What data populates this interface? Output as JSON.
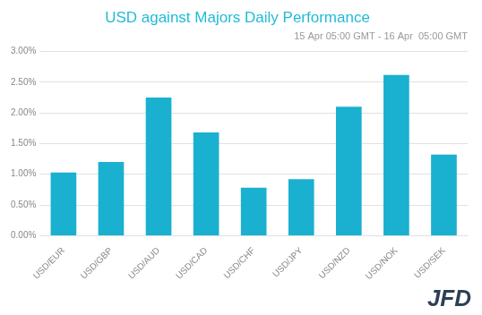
{
  "chart_data": {
    "type": "bar",
    "title": "USD against Majors Daily Performance",
    "subtitle": "15 Apr 05:00 GMT - 16 Apr  05:00 GMT",
    "categories": [
      "USD/EUR",
      "USD/GBP",
      "USD/AUD",
      "USD/CAD",
      "USD/CHF",
      "USD/JPY",
      "USD/NZD",
      "USD/NOK",
      "USD/SEK"
    ],
    "values": [
      1.03,
      1.2,
      2.25,
      1.68,
      0.78,
      0.92,
      2.1,
      2.62,
      1.32
    ],
    "color": "#1ab0d0",
    "ylim": [
      0,
      3.0
    ],
    "yticks": [
      {
        "value": 0.0,
        "label": "0.00%"
      },
      {
        "value": 0.5,
        "label": "0.50%"
      },
      {
        "value": 1.0,
        "label": "1.00%"
      },
      {
        "value": 1.5,
        "label": "1.50%"
      },
      {
        "value": 2.0,
        "label": "2.00%"
      },
      {
        "value": 2.5,
        "label": "2.50%"
      },
      {
        "value": 3.0,
        "label": "3.00%"
      }
    ],
    "grid": true,
    "annotations": [
      "JFD"
    ]
  }
}
